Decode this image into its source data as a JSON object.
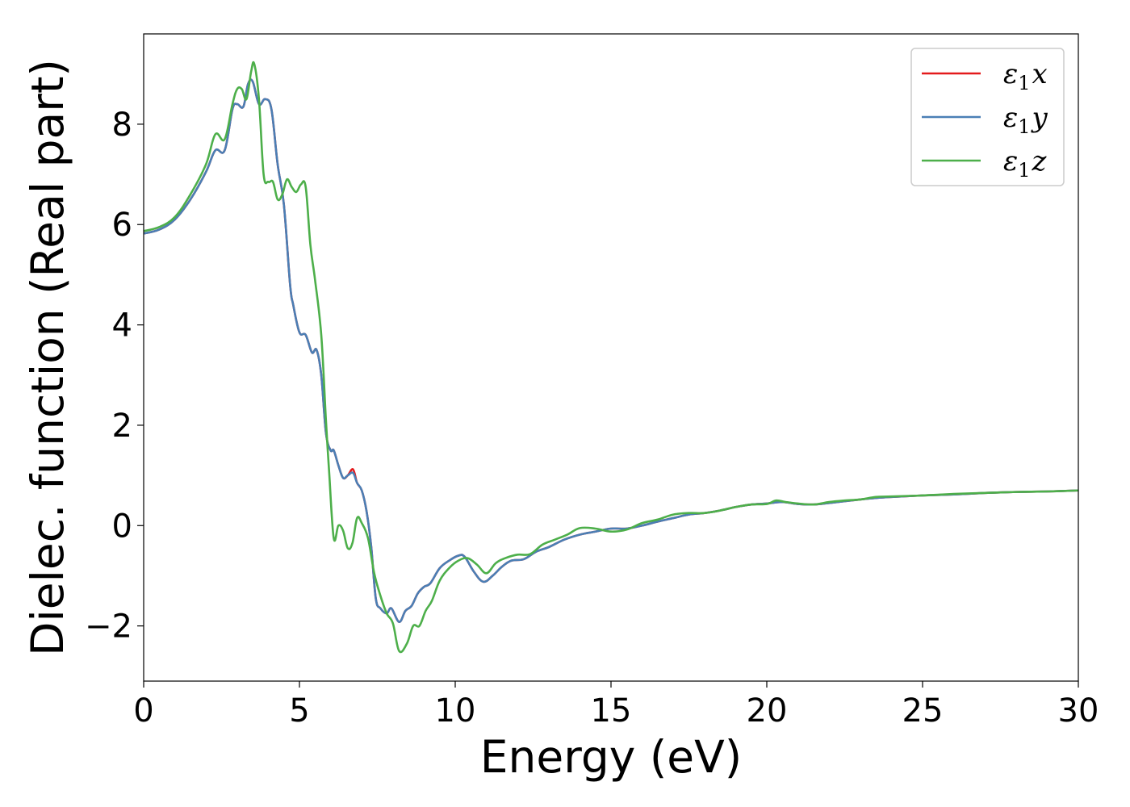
{
  "chart_data": {
    "type": "line",
    "title": "",
    "xlabel": "Energy (eV)",
    "ylabel": "Dielec. function (Real part)",
    "xlim": [
      0,
      30
    ],
    "ylim": [
      -3.1,
      9.8
    ],
    "xticks": [
      0,
      5,
      10,
      15,
      20,
      25,
      30
    ],
    "xtick_labels": [
      "0",
      "5",
      "10",
      "15",
      "20",
      "25",
      "30"
    ],
    "yticks": [
      -2,
      0,
      2,
      4,
      6,
      8
    ],
    "ytick_labels": [
      "−2",
      "0",
      "2",
      "4",
      "6",
      "8"
    ],
    "grid": false,
    "legend_position": "top-right",
    "series": [
      {
        "name": "ε₁x",
        "legend_main": "ε",
        "legend_sub": "1",
        "legend_axis": "x",
        "color": "#e41a1c",
        "x": [
          0,
          0.5,
          1,
          1.5,
          2,
          2.3,
          2.6,
          2.85,
          3.0,
          3.2,
          3.35,
          3.5,
          3.7,
          3.9,
          4.1,
          4.3,
          4.5,
          4.7,
          4.8,
          5.0,
          5.2,
          5.4,
          5.55,
          5.7,
          5.85,
          6.0,
          6.1,
          6.25,
          6.4,
          6.55,
          6.72,
          6.85,
          7.0,
          7.15,
          7.3,
          7.45,
          7.6,
          7.8,
          7.95,
          8.2,
          8.4,
          8.6,
          8.8,
          9.0,
          9.2,
          9.5,
          9.8,
          10.1,
          10.3,
          10.6,
          10.9,
          11.2,
          11.5,
          11.8,
          12.2,
          12.6,
          13.0,
          13.5,
          14.0,
          14.5,
          15.0,
          15.5,
          16.0,
          16.5,
          17.0,
          17.5,
          18.0,
          18.5,
          19.0,
          19.5,
          20.0,
          20.5,
          21.0,
          21.5,
          22.0,
          23.0,
          23.5,
          24.0,
          25.0,
          26.0,
          27.0,
          28.0,
          29.0,
          30.0
        ],
        "y": [
          5.82,
          5.9,
          6.1,
          6.5,
          7.05,
          7.48,
          7.48,
          8.3,
          8.4,
          8.35,
          8.8,
          8.85,
          8.4,
          8.5,
          8.3,
          7.2,
          6.4,
          4.8,
          4.4,
          3.85,
          3.8,
          3.45,
          3.5,
          3.0,
          1.85,
          1.5,
          1.5,
          1.2,
          0.95,
          1.0,
          1.12,
          0.85,
          0.7,
          0.3,
          -0.4,
          -1.45,
          -1.65,
          -1.75,
          -1.65,
          -1.92,
          -1.7,
          -1.6,
          -1.35,
          -1.22,
          -1.15,
          -0.85,
          -0.7,
          -0.6,
          -0.62,
          -0.92,
          -1.12,
          -1.0,
          -0.82,
          -0.7,
          -0.67,
          -0.52,
          -0.43,
          -0.28,
          -0.18,
          -0.12,
          -0.06,
          -0.06,
          0.0,
          0.08,
          0.15,
          0.22,
          0.25,
          0.3,
          0.37,
          0.42,
          0.44,
          0.47,
          0.43,
          0.42,
          0.45,
          0.52,
          0.55,
          0.57,
          0.6,
          0.62,
          0.65,
          0.67,
          0.68,
          0.7
        ]
      },
      {
        "name": "ε₁y",
        "legend_main": "ε",
        "legend_sub": "1",
        "legend_axis": "y",
        "color": "#4a7fb5",
        "x": [
          0,
          0.5,
          1,
          1.5,
          2,
          2.3,
          2.6,
          2.85,
          3.0,
          3.2,
          3.35,
          3.5,
          3.7,
          3.9,
          4.1,
          4.3,
          4.5,
          4.7,
          4.8,
          5.0,
          5.2,
          5.4,
          5.55,
          5.7,
          5.85,
          6.0,
          6.1,
          6.25,
          6.4,
          6.55,
          6.72,
          6.85,
          7.0,
          7.15,
          7.3,
          7.45,
          7.6,
          7.8,
          7.95,
          8.2,
          8.4,
          8.6,
          8.8,
          9.0,
          9.2,
          9.5,
          9.8,
          10.1,
          10.3,
          10.6,
          10.9,
          11.2,
          11.5,
          11.8,
          12.2,
          12.6,
          13.0,
          13.5,
          14.0,
          14.5,
          15.0,
          15.5,
          16.0,
          16.5,
          17.0,
          17.5,
          18.0,
          18.5,
          19.0,
          19.5,
          20.0,
          20.5,
          21.0,
          21.5,
          22.0,
          23.0,
          23.5,
          24.0,
          25.0,
          26.0,
          27.0,
          28.0,
          29.0,
          30.0
        ],
        "y": [
          5.82,
          5.9,
          6.1,
          6.5,
          7.05,
          7.48,
          7.48,
          8.3,
          8.4,
          8.35,
          8.8,
          8.85,
          8.4,
          8.5,
          8.3,
          7.2,
          6.4,
          4.8,
          4.4,
          3.85,
          3.8,
          3.45,
          3.5,
          3.0,
          1.85,
          1.5,
          1.5,
          1.2,
          0.95,
          1.0,
          1.05,
          0.85,
          0.7,
          0.3,
          -0.4,
          -1.45,
          -1.65,
          -1.75,
          -1.65,
          -1.92,
          -1.7,
          -1.6,
          -1.35,
          -1.22,
          -1.15,
          -0.85,
          -0.7,
          -0.6,
          -0.62,
          -0.92,
          -1.12,
          -1.0,
          -0.82,
          -0.7,
          -0.67,
          -0.52,
          -0.43,
          -0.28,
          -0.18,
          -0.12,
          -0.06,
          -0.06,
          0.0,
          0.08,
          0.15,
          0.22,
          0.25,
          0.3,
          0.37,
          0.42,
          0.44,
          0.47,
          0.43,
          0.42,
          0.45,
          0.52,
          0.55,
          0.57,
          0.6,
          0.62,
          0.65,
          0.67,
          0.68,
          0.7
        ]
      },
      {
        "name": "ε₁z",
        "legend_main": "ε",
        "legend_sub": "1",
        "legend_axis": "z",
        "color": "#4daf4a",
        "x": [
          0,
          0.5,
          1,
          1.5,
          2,
          2.3,
          2.6,
          2.85,
          3.0,
          3.15,
          3.3,
          3.45,
          3.55,
          3.7,
          3.85,
          4.0,
          4.15,
          4.3,
          4.45,
          4.6,
          4.75,
          4.9,
          5.05,
          5.2,
          5.35,
          5.5,
          5.7,
          5.85,
          5.95,
          6.1,
          6.25,
          6.4,
          6.55,
          6.7,
          6.85,
          7.0,
          7.2,
          7.4,
          7.6,
          7.8,
          8.0,
          8.2,
          8.45,
          8.65,
          8.85,
          9.05,
          9.25,
          9.5,
          9.8,
          10.1,
          10.4,
          10.7,
          11.0,
          11.3,
          11.6,
          12.0,
          12.4,
          12.8,
          13.2,
          13.6,
          14.0,
          14.5,
          15.0,
          15.5,
          16.0,
          16.5,
          17.0,
          17.5,
          18.0,
          18.5,
          19.0,
          19.5,
          20.0,
          20.3,
          20.6,
          21.0,
          21.5,
          22.0,
          22.5,
          23.0,
          23.5,
          24.0,
          25.0,
          26.0,
          27.0,
          28.0,
          29.0,
          30.0
        ],
        "y": [
          5.87,
          5.95,
          6.15,
          6.6,
          7.2,
          7.8,
          7.7,
          8.4,
          8.7,
          8.7,
          8.5,
          9.05,
          9.2,
          8.5,
          7.0,
          6.85,
          6.85,
          6.5,
          6.6,
          6.9,
          6.75,
          6.65,
          6.8,
          6.75,
          5.6,
          4.9,
          3.8,
          2.1,
          1.1,
          -0.25,
          0.0,
          -0.1,
          -0.45,
          -0.35,
          0.15,
          0.05,
          -0.25,
          -0.95,
          -1.4,
          -1.75,
          -1.95,
          -2.5,
          -2.35,
          -2.0,
          -2.0,
          -1.7,
          -1.5,
          -1.1,
          -0.85,
          -0.7,
          -0.65,
          -0.78,
          -0.95,
          -0.75,
          -0.65,
          -0.58,
          -0.57,
          -0.38,
          -0.28,
          -0.18,
          -0.05,
          -0.06,
          -0.12,
          -0.08,
          0.05,
          0.12,
          0.22,
          0.25,
          0.25,
          0.3,
          0.37,
          0.42,
          0.43,
          0.5,
          0.47,
          0.44,
          0.42,
          0.47,
          0.5,
          0.52,
          0.57,
          0.58,
          0.6,
          0.63,
          0.65,
          0.67,
          0.68,
          0.7
        ]
      }
    ]
  }
}
